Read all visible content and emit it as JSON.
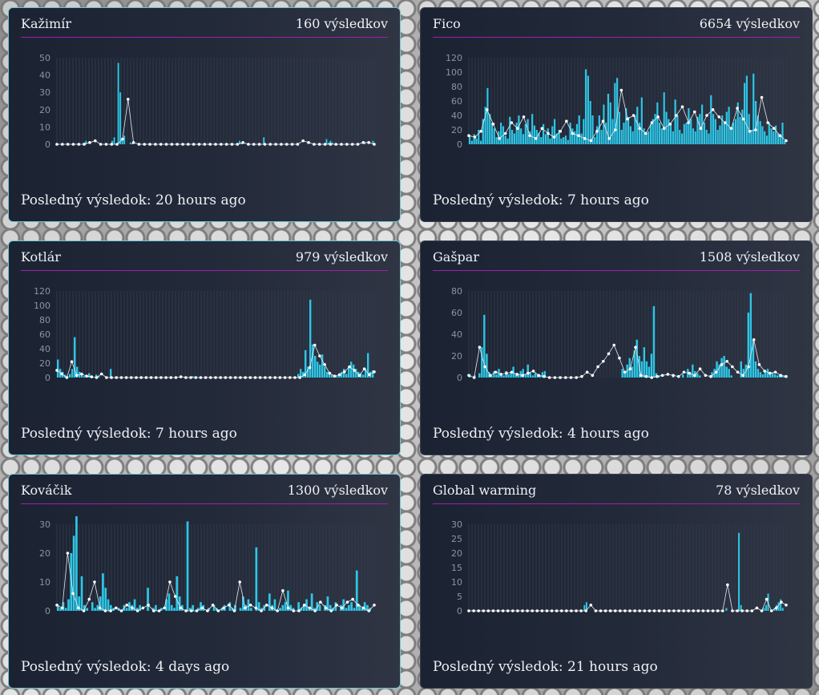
{
  "labels": {
    "results_suffix": "výsledkov",
    "last_prefix": "Posledný výsledok:"
  },
  "cards": [
    {
      "title": "Kažimír",
      "count": "160 výsledkov",
      "count_value": 160,
      "last": "Posledný výsledok: 20 hours ago",
      "chart_data": {
        "type": "bar",
        "ylim": [
          0,
          50
        ],
        "yticks": [
          0,
          10,
          20,
          30,
          40,
          50
        ],
        "bars": [
          0,
          0,
          0,
          0,
          0,
          0,
          0,
          0,
          0,
          0,
          0,
          0,
          0,
          1,
          2,
          0,
          0,
          0,
          0,
          0,
          0,
          0,
          0,
          0,
          0,
          0,
          0,
          2,
          4,
          0,
          47,
          30,
          3,
          5,
          0,
          0,
          1,
          1,
          0,
          0,
          0,
          0,
          0,
          0,
          0,
          0,
          0,
          0,
          0,
          0,
          0,
          0,
          0,
          0,
          0,
          0,
          0,
          0,
          0,
          0,
          0,
          0,
          0,
          0,
          0,
          0,
          0,
          0,
          0,
          0,
          0,
          0,
          0,
          0,
          0,
          0,
          0,
          0,
          0,
          0,
          0,
          0,
          0,
          0,
          0,
          0,
          0,
          0,
          0,
          0,
          2,
          1,
          0,
          0,
          0,
          0,
          0,
          0,
          0,
          0,
          0,
          0,
          4,
          0,
          0,
          0,
          0,
          0,
          0,
          0,
          0,
          0,
          0,
          0,
          0,
          0,
          0,
          0,
          0,
          0,
          0,
          0,
          0,
          0,
          0,
          0,
          0,
          0,
          0,
          0,
          0,
          0,
          0,
          3,
          1,
          2,
          1,
          0,
          0,
          0,
          0,
          0,
          0,
          0,
          0,
          0,
          0,
          0,
          0,
          0,
          0,
          0,
          1,
          0,
          0,
          0,
          2
        ],
        "line": [
          0,
          0,
          0,
          0,
          0,
          0,
          1,
          2,
          0,
          0,
          0,
          0,
          3,
          26,
          1,
          0,
          0,
          0,
          0,
          0,
          0,
          0,
          0,
          0,
          0,
          0,
          0,
          0,
          0,
          0,
          0,
          0,
          0,
          0,
          1,
          0,
          0,
          0,
          0,
          0,
          0,
          0,
          0,
          0,
          0,
          2,
          1,
          0,
          0,
          0,
          0,
          0,
          0,
          0,
          0,
          0,
          1,
          1,
          0
        ]
      }
    },
    {
      "title": "Fico",
      "count": "6654 výsledkov",
      "count_value": 6654,
      "last": "Posledný výsledok: 7 hours ago",
      "chart_data": {
        "type": "bar",
        "ylim": [
          0,
          120
        ],
        "yticks": [
          0,
          20,
          40,
          60,
          80,
          100,
          120
        ],
        "bars": [
          12,
          5,
          14,
          8,
          20,
          5,
          35,
          52,
          78,
          42,
          30,
          22,
          10,
          18,
          30,
          25,
          12,
          8,
          38,
          20,
          15,
          30,
          40,
          22,
          14,
          28,
          35,
          18,
          42,
          26,
          20,
          16,
          10,
          28,
          14,
          22,
          8,
          25,
          35,
          15,
          20,
          8,
          10,
          12,
          6,
          30,
          22,
          18,
          28,
          40,
          15,
          35,
          104,
          95,
          60,
          40,
          10,
          25,
          40,
          20,
          55,
          30,
          70,
          58,
          35,
          85,
          92,
          45,
          20,
          30,
          50,
          38,
          25,
          18,
          40,
          52,
          30,
          65,
          22,
          15,
          18,
          28,
          35,
          42,
          58,
          30,
          22,
          72,
          45,
          35,
          28,
          18,
          62,
          40,
          20,
          15,
          28,
          30,
          50,
          35,
          22,
          18,
          38,
          42,
          55,
          30,
          20,
          15,
          68,
          42,
          35,
          20,
          26,
          40,
          30,
          45,
          52,
          22,
          30,
          35,
          58,
          38,
          48,
          85,
          95,
          42,
          20,
          98,
          60,
          40,
          32,
          25,
          18,
          12,
          30,
          22,
          18,
          26,
          15,
          10,
          30,
          5
        ],
        "line": [
          12,
          10,
          18,
          48,
          28,
          8,
          15,
          30,
          22,
          38,
          12,
          8,
          22,
          15,
          10,
          18,
          32,
          15,
          12,
          8,
          5,
          18,
          32,
          8,
          20,
          75,
          35,
          40,
          22,
          15,
          30,
          38,
          22,
          28,
          40,
          52,
          30,
          45,
          22,
          40,
          48,
          38,
          30,
          22,
          50,
          35,
          18,
          20,
          65,
          30,
          22,
          12,
          5
        ]
      }
    },
    {
      "title": "Kotlár",
      "count": "979 výsledkov",
      "count_value": 979,
      "last": "Posledný výsledok: 7 hours ago",
      "chart_data": {
        "type": "bar",
        "ylim": [
          0,
          120
        ],
        "yticks": [
          0,
          20,
          40,
          60,
          80,
          100,
          120
        ],
        "bars": [
          25,
          12,
          8,
          4,
          2,
          5,
          12,
          56,
          15,
          8,
          4,
          2,
          3,
          6,
          2,
          0,
          4,
          2,
          0,
          0,
          0,
          0,
          12,
          0,
          0,
          0,
          0,
          0,
          0,
          0,
          0,
          0,
          0,
          0,
          0,
          0,
          0,
          0,
          0,
          0,
          0,
          0,
          0,
          0,
          0,
          0,
          0,
          0,
          0,
          0,
          0,
          0,
          0,
          0,
          0,
          0,
          2,
          0,
          0,
          0,
          0,
          0,
          0,
          0,
          0,
          0,
          0,
          0,
          0,
          0,
          0,
          0,
          0,
          0,
          0,
          0,
          0,
          0,
          0,
          0,
          0,
          0,
          0,
          0,
          0,
          0,
          0,
          0,
          0,
          0,
          0,
          0,
          0,
          0,
          0,
          0,
          0,
          0,
          0,
          0,
          5,
          12,
          8,
          38,
          15,
          108,
          46,
          30,
          22,
          18,
          32,
          15,
          8,
          6,
          4,
          2,
          2,
          3,
          8,
          12,
          5,
          15,
          22,
          18,
          12,
          8,
          6,
          4,
          12,
          34,
          8,
          10
        ],
        "line": [
          10,
          5,
          0,
          22,
          3,
          5,
          2,
          1,
          0,
          5,
          0,
          0,
          0,
          0,
          0,
          0,
          0,
          0,
          0,
          0,
          0,
          0,
          0,
          0,
          0,
          1,
          0,
          0,
          0,
          0,
          0,
          0,
          0,
          0,
          0,
          0,
          0,
          0,
          0,
          0,
          0,
          0,
          0,
          0,
          0,
          0,
          0,
          0,
          0,
          0,
          4,
          14,
          45,
          30,
          18,
          6,
          2,
          4,
          8,
          15,
          10,
          3,
          12,
          4,
          8
        ]
      }
    },
    {
      "title": "Gašpar",
      "count": "1508 výsledkov",
      "count_value": 1508,
      "last": "Posledný výsledok: 4 hours ago",
      "chart_data": {
        "type": "bar",
        "ylim": [
          0,
          80
        ],
        "yticks": [
          0,
          20,
          40,
          60,
          80
        ],
        "bars": [
          3,
          0,
          2,
          0,
          4,
          28,
          58,
          22,
          5,
          2,
          6,
          3,
          8,
          4,
          2,
          6,
          3,
          5,
          10,
          4,
          2,
          6,
          8,
          3,
          12,
          5,
          2,
          4,
          3,
          2,
          5,
          6,
          0,
          0,
          0,
          0,
          0,
          0,
          0,
          0,
          0,
          0,
          0,
          0,
          0,
          0,
          0,
          0,
          0,
          0,
          0,
          0,
          0,
          0,
          0,
          0,
          0,
          0,
          0,
          0,
          0,
          0,
          0,
          8,
          4,
          12,
          18,
          10,
          25,
          35,
          20,
          15,
          28,
          15,
          10,
          22,
          66,
          4,
          2,
          0,
          0,
          0,
          0,
          0,
          2,
          0,
          0,
          0,
          3,
          0,
          8,
          5,
          12,
          6,
          4,
          2,
          0,
          0,
          0,
          0,
          5,
          8,
          15,
          12,
          18,
          20,
          10,
          8,
          2,
          0,
          0,
          0,
          15,
          8,
          12,
          60,
          78,
          35,
          15,
          8,
          5,
          3,
          6,
          8,
          4,
          5,
          3,
          2,
          3,
          2,
          2
        ],
        "line": [
          2,
          0,
          28,
          10,
          2,
          5,
          3,
          4,
          5,
          3,
          2,
          4,
          6,
          2,
          1,
          0,
          0,
          0,
          0,
          0,
          0,
          1,
          5,
          2,
          10,
          15,
          22,
          30,
          18,
          5,
          8,
          28,
          2,
          1,
          0,
          1,
          2,
          3,
          2,
          1,
          5,
          4,
          2,
          8,
          2,
          1,
          5,
          12,
          15,
          10,
          5,
          2,
          10,
          35,
          12,
          6,
          4,
          5,
          2,
          1
        ]
      }
    },
    {
      "title": "Kováčik",
      "count": "1300 výsledkov",
      "count_value": 1300,
      "last": "Posledný výsledok: 4 days ago",
      "chart_data": {
        "type": "bar",
        "ylim": [
          0,
          30
        ],
        "yticks": [
          0,
          10,
          20,
          30
        ],
        "bars": [
          2,
          1,
          3,
          1,
          4,
          20,
          26,
          33,
          5,
          12,
          2,
          1,
          0,
          3,
          1,
          2,
          5,
          13,
          8,
          4,
          2,
          1,
          0,
          1,
          0,
          2,
          1,
          3,
          2,
          4,
          1,
          2,
          0,
          0,
          8,
          0,
          1,
          2,
          0,
          1,
          0,
          4,
          6,
          2,
          1,
          12,
          5,
          2,
          0,
          31,
          1,
          2,
          0,
          1,
          3,
          2,
          0,
          1,
          0,
          2,
          1,
          0,
          1,
          2,
          0,
          3,
          1,
          2,
          0,
          1,
          5,
          2,
          4,
          1,
          0,
          22,
          3,
          1,
          2,
          0,
          6,
          2,
          4,
          0,
          1,
          2,
          3,
          7,
          2,
          1,
          0,
          3,
          1,
          2,
          4,
          1,
          6,
          1,
          3,
          2,
          0,
          2,
          5,
          2,
          1,
          3,
          0,
          2,
          4,
          1,
          2,
          3,
          1,
          14,
          2,
          1,
          3,
          2,
          1,
          0
        ],
        "line": [
          2,
          1,
          20,
          6,
          1,
          0,
          4,
          10,
          1,
          0,
          0,
          1,
          0,
          2,
          1,
          0,
          1,
          2,
          0,
          0,
          1,
          10,
          5,
          1,
          0,
          0,
          0,
          1,
          0,
          2,
          0,
          1,
          2,
          0,
          10,
          1,
          2,
          1,
          0,
          2,
          1,
          0,
          7,
          1,
          0,
          0,
          2,
          1,
          0,
          3,
          1,
          0,
          2,
          1,
          3,
          4,
          2,
          1,
          0,
          2
        ]
      }
    },
    {
      "title": "Global warming",
      "count": "78 výsledkov",
      "count_value": 78,
      "last": "Posledný výsledok: 21 hours ago",
      "chart_data": {
        "type": "bar",
        "ylim": [
          0,
          30
        ],
        "yticks": [
          0,
          5,
          10,
          15,
          20,
          25,
          30
        ],
        "bars": [
          0,
          0,
          0,
          0,
          0,
          0,
          0,
          0,
          0,
          0,
          0,
          0,
          0,
          0,
          0,
          0,
          0,
          0,
          0,
          0,
          0,
          0,
          0,
          0,
          0,
          0,
          0,
          0,
          0,
          0,
          0,
          0,
          0,
          0,
          0,
          0,
          0,
          0,
          0,
          0,
          0,
          0,
          0,
          0,
          0,
          0,
          0,
          0,
          0,
          0,
          0,
          0,
          0,
          0,
          0,
          2,
          3,
          0,
          0,
          0,
          0,
          0,
          0,
          0,
          0,
          0,
          0,
          0,
          0,
          0,
          0,
          0,
          0,
          0,
          0,
          0,
          0,
          0,
          0,
          0,
          0,
          0,
          0,
          0,
          0,
          0,
          0,
          0,
          0,
          0,
          0,
          0,
          0,
          0,
          0,
          0,
          0,
          0,
          0,
          0,
          0,
          0,
          0,
          0,
          0,
          0,
          0,
          0,
          0,
          0,
          0,
          0,
          0,
          0,
          0,
          0,
          0,
          0,
          0,
          0,
          0,
          0,
          0,
          1,
          0,
          0,
          0,
          0,
          0,
          27,
          2,
          0,
          0,
          0,
          0,
          0,
          0,
          0,
          0,
          0,
          0,
          1,
          2,
          6,
          0,
          0,
          1,
          2,
          3,
          4,
          1,
          0
        ],
        "line": [
          0,
          0,
          0,
          0,
          0,
          0,
          0,
          0,
          0,
          0,
          0,
          0,
          0,
          0,
          0,
          0,
          0,
          0,
          0,
          0,
          0,
          0,
          0,
          0,
          0,
          2,
          0,
          0,
          0,
          0,
          0,
          0,
          0,
          0,
          0,
          0,
          0,
          0,
          0,
          0,
          0,
          0,
          0,
          0,
          0,
          0,
          0,
          0,
          0,
          0,
          0,
          0,
          0,
          9,
          0,
          0,
          0,
          0,
          0,
          1,
          0,
          4,
          0,
          1,
          3,
          2
        ]
      }
    }
  ],
  "colors": {
    "bar": "#2ec6e6",
    "line": "#e8eaee",
    "border_active": "#6fc6d6",
    "divider": "#a020a8",
    "text": "#eef0f4",
    "tick": "#8c93a0"
  }
}
